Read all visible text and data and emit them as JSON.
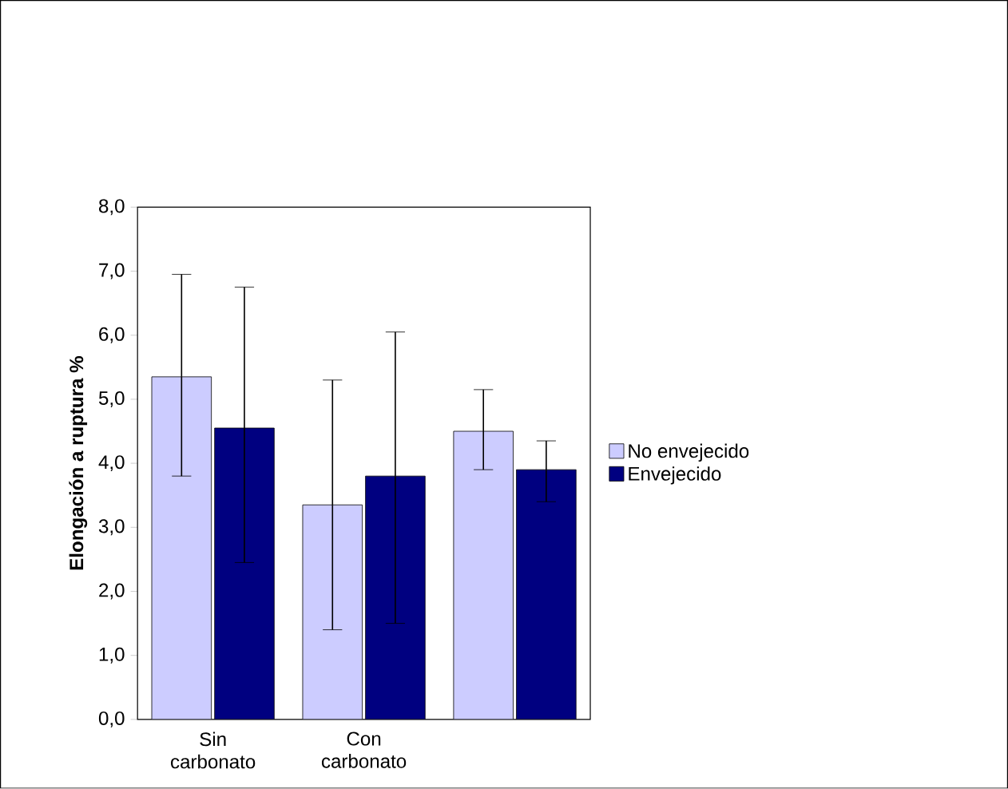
{
  "chart_data": {
    "type": "bar",
    "ylabel": "Elongación a ruptura %",
    "categories": [
      "Sin carbonato",
      "Con carbonato",
      null
    ],
    "series": [
      {
        "name": "No envejecido",
        "color": "#ccccff",
        "values": [
          5.35,
          3.35,
          4.5
        ],
        "errors": [
          [
            3.8,
            6.95
          ],
          [
            1.4,
            5.3
          ],
          [
            3.9,
            5.15
          ]
        ]
      },
      {
        "name": "Envejecido",
        "color": "#000080",
        "values": [
          4.55,
          3.8,
          3.9
        ],
        "errors": [
          [
            2.45,
            6.75
          ],
          [
            1.5,
            6.05
          ],
          [
            3.4,
            4.35
          ]
        ]
      }
    ],
    "ylim": [
      0,
      8
    ],
    "yticks": [
      {
        "value": 0,
        "label": "0,0"
      },
      {
        "value": 1,
        "label": "1,0"
      },
      {
        "value": 2,
        "label": "2,0"
      },
      {
        "value": 3,
        "label": "3,0"
      },
      {
        "value": 4,
        "label": "4,0"
      },
      {
        "value": 5,
        "label": "5,0"
      },
      {
        "value": 6,
        "label": "6,0"
      },
      {
        "value": 7,
        "label": "7,0"
      },
      {
        "value": 8,
        "label": "8,0"
      }
    ],
    "grid": false,
    "legend": "right"
  }
}
